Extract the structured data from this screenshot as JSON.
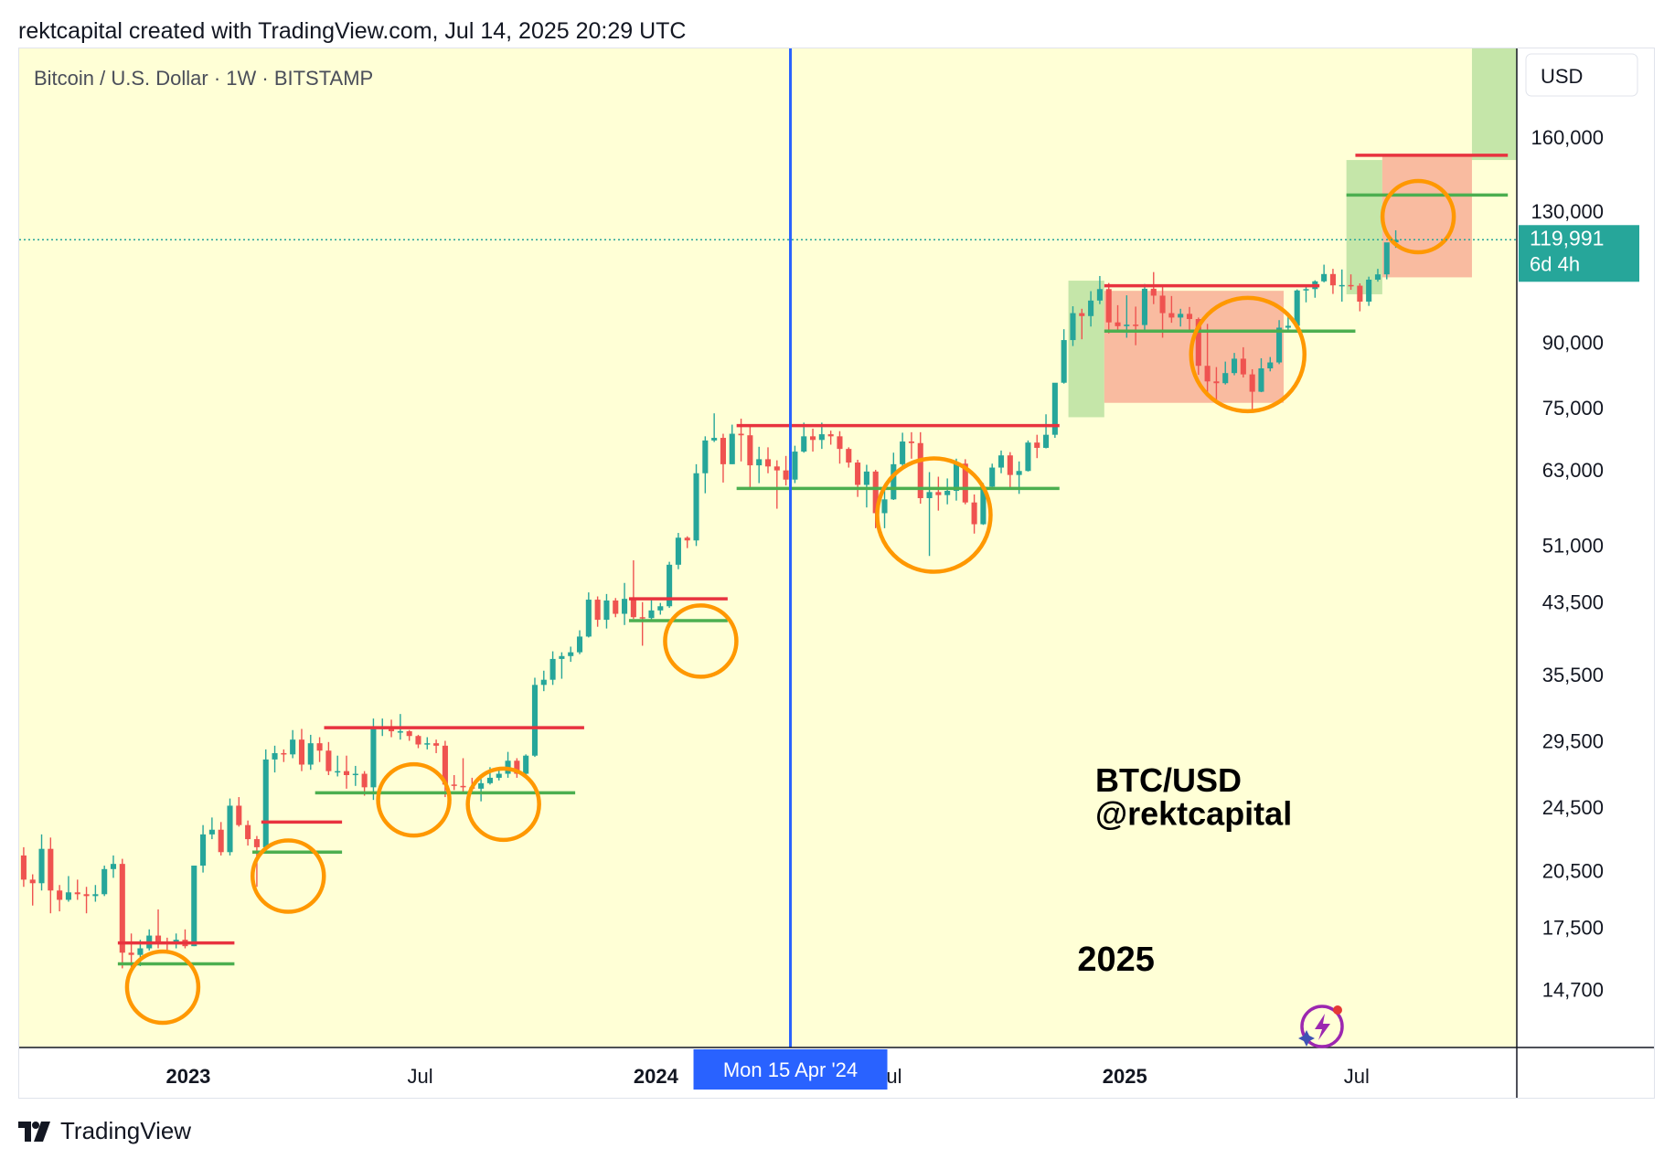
{
  "header": {
    "credit": "rektcapital created with TradingView.com, Jul 14, 2025 20:29 UTC"
  },
  "footer": {
    "brand": "TradingView"
  },
  "colors": {
    "background": "#FFFFD6",
    "up": "#26A69A",
    "down": "#EF5350",
    "resistance": "#E8333F",
    "support": "#4CAF50",
    "circle": "#FF9800",
    "cursor": "#2962FF",
    "price_tag": "#26A69A",
    "green_zone": "#9ED68A",
    "red_zone": "#F7A48D"
  },
  "chart_data": {
    "type": "candlestick",
    "symbol_line": "Bitcoin / U.S. Dollar · 1W · BITSTAMP",
    "currency_button": "USD",
    "scale": "log",
    "y_ticks": [
      160000,
      130000,
      90000,
      75000,
      63000,
      51000,
      43500,
      35500,
      29500,
      24500,
      20500,
      17500,
      14700
    ],
    "y_tick_labels": [
      "160,000",
      "130,000",
      "90,000",
      "75,000",
      "63,000",
      "51,000",
      "43,500",
      "35,500",
      "29,500",
      "24,500",
      "20,500",
      "17,500",
      "14,700"
    ],
    "ylim": [
      12500,
      205000
    ],
    "x_ticks": [
      {
        "label": "2023",
        "date": "2023-01-01",
        "bold": true
      },
      {
        "label": "Jul",
        "date": "2023-07-01",
        "bold": false
      },
      {
        "label": "2024",
        "date": "2024-01-01",
        "bold": true
      },
      {
        "label": "Jul",
        "date": "2024-07-01",
        "bold": false
      },
      {
        "label": "2025",
        "date": "2025-01-01",
        "bold": true
      },
      {
        "label": "Jul",
        "date": "2025-07-01",
        "bold": false
      }
    ],
    "xlim": [
      "2022-08-22",
      "2025-11-03"
    ],
    "last_price": {
      "value": 119991,
      "label": "119,991",
      "countdown": "6d 4h"
    },
    "crosshair": {
      "date": "2024-04-15",
      "label": "Mon 15 Apr '24"
    },
    "annotations": [
      {
        "text": "BTC/USD",
        "date": "2024-12-09",
        "price": 25600
      },
      {
        "text": "@rektcapital",
        "date": "2024-12-09",
        "price": 23300
      },
      {
        "text": "2025",
        "date": "2024-11-25",
        "price": 15500
      }
    ],
    "resistance_lines": [
      {
        "from": "2022-11-07",
        "to": "2023-02-06",
        "price": 16750
      },
      {
        "from": "2023-02-27",
        "to": "2023-05-01",
        "price": 23500
      },
      {
        "from": "2023-04-17",
        "to": "2023-11-06",
        "price": 30600
      },
      {
        "from": "2023-12-11",
        "to": "2024-02-26",
        "price": 43900
      },
      {
        "from": "2024-03-04",
        "to": "2024-11-11",
        "price": 71300
      },
      {
        "from": "2024-12-16",
        "to": "2025-06-02",
        "price": 105500
      },
      {
        "from": "2025-06-30",
        "to": "2025-10-27",
        "price": 152000
      }
    ],
    "support_lines": [
      {
        "from": "2022-11-07",
        "to": "2023-02-06",
        "price": 15800
      },
      {
        "from": "2023-02-20",
        "to": "2023-05-01",
        "price": 21600
      },
      {
        "from": "2023-04-10",
        "to": "2023-10-30",
        "price": 25500
      },
      {
        "from": "2023-12-11",
        "to": "2024-02-26",
        "price": 41300
      },
      {
        "from": "2024-03-04",
        "to": "2024-11-11",
        "price": 59800
      },
      {
        "from": "2024-12-16",
        "to": "2025-06-30",
        "price": 92900
      },
      {
        "from": "2025-06-23",
        "to": "2025-10-27",
        "price": 136000
      }
    ],
    "circles": [
      {
        "date": "2022-12-12",
        "price": 14800
      },
      {
        "date": "2023-03-20",
        "price": 20200
      },
      {
        "date": "2023-06-26",
        "price": 25000
      },
      {
        "date": "2023-09-04",
        "price": 24700
      },
      {
        "date": "2024-02-05",
        "price": 39000
      },
      {
        "date": "2024-08-05",
        "price": 55500
      },
      {
        "date": "2025-04-07",
        "price": 87000
      },
      {
        "date": "2025-08-18",
        "price": 128000
      }
    ],
    "zones": [
      {
        "kind": "green",
        "from": "2024-11-18",
        "to": "2024-12-16",
        "low": 73000,
        "high": 107000
      },
      {
        "kind": "red",
        "from": "2024-12-16",
        "to": "2025-05-05",
        "low": 76000,
        "high": 104000
      },
      {
        "kind": "green",
        "from": "2025-06-23",
        "to": "2025-07-21",
        "low": 103000,
        "high": 150000
      },
      {
        "kind": "red",
        "from": "2025-07-21",
        "to": "2025-09-29",
        "low": 108000,
        "high": 152000
      },
      {
        "kind": "green",
        "from": "2025-09-29",
        "to": "2025-11-03",
        "low": 150000,
        "high": 205000
      }
    ],
    "candles": {
      "start": "2022-08-22",
      "interval_days": 7,
      "fields": [
        "open",
        "high",
        "low",
        "close"
      ],
      "values": [
        [
          21400,
          21900,
          19600,
          20000
        ],
        [
          20000,
          20300,
          18600,
          19800
        ],
        [
          19800,
          22700,
          19400,
          21800
        ],
        [
          21800,
          22500,
          18200,
          19400
        ],
        [
          19400,
          19700,
          18300,
          18900
        ],
        [
          18900,
          20200,
          18800,
          19300
        ],
        [
          19300,
          20000,
          18900,
          19200
        ],
        [
          19200,
          19600,
          18200,
          19100
        ],
        [
          19100,
          19700,
          18800,
          19200
        ],
        [
          19200,
          20800,
          19100,
          20600
        ],
        [
          20600,
          21400,
          20100,
          20900
        ],
        [
          20900,
          21200,
          15600,
          16300
        ],
        [
          16300,
          17200,
          15500,
          16200
        ],
        [
          16200,
          16900,
          15700,
          16500
        ],
        [
          16500,
          17400,
          16400,
          17100
        ],
        [
          17100,
          18400,
          16500,
          16800
        ],
        [
          16800,
          17000,
          16300,
          16700
        ],
        [
          16700,
          17200,
          16500,
          16900
        ],
        [
          16900,
          17400,
          16500,
          16600
        ],
        [
          16600,
          20800,
          16600,
          20800
        ],
        [
          20800,
          23300,
          20400,
          22700
        ],
        [
          22700,
          23800,
          22400,
          23000
        ],
        [
          23000,
          23500,
          21400,
          21600
        ],
        [
          21600,
          25100,
          21400,
          24600
        ],
        [
          24600,
          25200,
          23200,
          23300
        ],
        [
          23300,
          23600,
          22000,
          22400
        ],
        [
          22400,
          22600,
          19600,
          21900
        ],
        [
          21900,
          28800,
          21800,
          28000
        ],
        [
          28000,
          29100,
          27000,
          28500
        ],
        [
          28500,
          28800,
          27800,
          28400
        ],
        [
          28400,
          30400,
          28100,
          29600
        ],
        [
          29600,
          30500,
          27100,
          27600
        ],
        [
          27600,
          30000,
          27200,
          29300
        ],
        [
          29300,
          29800,
          27800,
          28700
        ],
        [
          28700,
          29400,
          26800,
          27100
        ],
        [
          27100,
          28300,
          26700,
          27100
        ],
        [
          27100,
          28300,
          25800,
          26800
        ],
        [
          26800,
          27500,
          26000,
          26900
        ],
        [
          26900,
          27100,
          25300,
          25900
        ],
        [
          25900,
          31400,
          25000,
          30500
        ],
        [
          30500,
          31400,
          29900,
          30600
        ],
        [
          30600,
          31300,
          29800,
          30300
        ],
        [
          30300,
          31800,
          29600,
          30300
        ],
        [
          30300,
          30400,
          29500,
          29900
        ],
        [
          29900,
          30000,
          28900,
          29200
        ],
        [
          29200,
          29800,
          28800,
          29300
        ],
        [
          29300,
          29600,
          28500,
          29100
        ],
        [
          29100,
          29500,
          25200,
          26100
        ],
        [
          26100,
          26800,
          25700,
          26000
        ],
        [
          26000,
          28100,
          25400,
          25900
        ],
        [
          25900,
          26600,
          25500,
          25800
        ],
        [
          25800,
          26500,
          24900,
          26200
        ],
        [
          26200,
          27400,
          26100,
          26600
        ],
        [
          26600,
          27200,
          26400,
          26900
        ],
        [
          26900,
          28600,
          26600,
          27900
        ],
        [
          27900,
          28100,
          26600,
          26900
        ],
        [
          26900,
          28400,
          26800,
          28300
        ],
        [
          28300,
          35200,
          28200,
          34500
        ],
        [
          34500,
          35900,
          33900,
          35000
        ],
        [
          35000,
          37900,
          34500,
          37100
        ],
        [
          37100,
          37800,
          35100,
          37400
        ],
        [
          37400,
          38400,
          36800,
          37800
        ],
        [
          37800,
          40200,
          37600,
          39500
        ],
        [
          39500,
          44700,
          39400,
          43800
        ],
        [
          43800,
          44200,
          40600,
          41400
        ],
        [
          41400,
          44500,
          40400,
          43700
        ],
        [
          43700,
          44000,
          41700,
          42100
        ],
        [
          42100,
          45900,
          40800,
          43900
        ],
        [
          43900,
          48900,
          41500,
          41700
        ],
        [
          41700,
          43500,
          38500,
          41600
        ],
        [
          41600,
          43800,
          41400,
          42500
        ],
        [
          42500,
          43400,
          42000,
          43000
        ],
        [
          43000,
          48700,
          42800,
          48300
        ],
        [
          48300,
          52800,
          47700,
          52100
        ],
        [
          52100,
          52300,
          50600,
          51700
        ],
        [
          51700,
          64000,
          50900,
          62400
        ],
        [
          62400,
          69200,
          59000,
          68400
        ],
        [
          68400,
          73800,
          68100,
          68900
        ],
        [
          68900,
          69700,
          60800,
          64000
        ],
        [
          64000,
          71500,
          64000,
          69700
        ],
        [
          69700,
          72700,
          64500,
          69400
        ],
        [
          69400,
          71200,
          59600,
          63800
        ],
        [
          63800,
          67200,
          60700,
          64900
        ],
        [
          64900,
          67100,
          62400,
          63600
        ],
        [
          63600,
          64700,
          56500,
          62900
        ],
        [
          62900,
          65500,
          60300,
          61300
        ],
        [
          61300,
          67400,
          60700,
          66300
        ],
        [
          66300,
          71900,
          66100,
          69200
        ],
        [
          69200,
          70700,
          66300,
          68500
        ],
        [
          68500,
          71900,
          66800,
          69600
        ],
        [
          69600,
          70300,
          67600,
          69200
        ],
        [
          69200,
          70200,
          64100,
          66800
        ],
        [
          66800,
          67100,
          63400,
          64300
        ],
        [
          64300,
          64800,
          58400,
          60400
        ],
        [
          60400,
          63900,
          56700,
          62700
        ],
        [
          62700,
          63000,
          53500,
          55800
        ],
        [
          55800,
          60400,
          53500,
          58000
        ],
        [
          58000,
          66100,
          57900,
          64000
        ],
        [
          64000,
          69900,
          63600,
          68200
        ],
        [
          68200,
          70000,
          65000,
          67900
        ],
        [
          67900,
          70000,
          57300,
          58200
        ],
        [
          58200,
          62600,
          49500,
          59200
        ],
        [
          59200,
          61800,
          56200,
          58700
        ],
        [
          58700,
          61500,
          57200,
          59400
        ],
        [
          59400,
          65000,
          57800,
          64100
        ],
        [
          64100,
          64900,
          57200,
          57500
        ],
        [
          57500,
          58800,
          52700,
          54100
        ],
        [
          54100,
          60700,
          54000,
          60100
        ],
        [
          60100,
          64100,
          59800,
          63400
        ],
        [
          63400,
          66500,
          62400,
          65600
        ],
        [
          65600,
          66200,
          60000,
          62100
        ],
        [
          62100,
          64500,
          58900,
          62800
        ],
        [
          62800,
          68400,
          62700,
          68000
        ],
        [
          68000,
          69500,
          65100,
          67000
        ],
        [
          67000,
          73600,
          66900,
          69500
        ],
        [
          69500,
          80200,
          68900,
          80400
        ],
        [
          80400,
          93400,
          80200,
          90600
        ],
        [
          90600,
          99600,
          89100,
          97700
        ],
        [
          97700,
          98900,
          90800,
          96900
        ],
        [
          96900,
          103900,
          94100,
          101200
        ],
        [
          101200,
          108400,
          100200,
          104500
        ],
        [
          104500,
          106300,
          92300,
          95200
        ],
        [
          95200,
          99900,
          93100,
          94200
        ],
        [
          94200,
          102700,
          91200,
          94600
        ],
        [
          94600,
          99500,
          89300,
          94500
        ],
        [
          94500,
          106000,
          92500,
          104600
        ],
        [
          104600,
          109600,
          100200,
          102600
        ],
        [
          102600,
          105600,
          91200,
          97700
        ],
        [
          97700,
          102500,
          95100,
          96500
        ],
        [
          96500,
          98900,
          94100,
          97500
        ],
        [
          97500,
          99400,
          93300,
          96100
        ],
        [
          96100,
          96500,
          82200,
          84300
        ],
        [
          84300,
          94800,
          78200,
          80700
        ],
        [
          80700,
          84000,
          76600,
          80300
        ],
        [
          80300,
          85300,
          80000,
          82600
        ],
        [
          82600,
          87400,
          82100,
          86000
        ],
        [
          86000,
          88800,
          81600,
          82300
        ],
        [
          82300,
          83500,
          74500,
          78400
        ],
        [
          78400,
          86100,
          78300,
          83700
        ],
        [
          83700,
          86400,
          83000,
          85100
        ],
        [
          85100,
          95800,
          84700,
          93800
        ],
        [
          93800,
          97900,
          92900,
          94300
        ],
        [
          94300,
          104400,
          93400,
          104100
        ],
        [
          104100,
          105800,
          100700,
          104500
        ],
        [
          104500,
          107100,
          102000,
          106800
        ],
        [
          106800,
          111900,
          106500,
          109000
        ],
        [
          109000,
          110600,
          103100,
          105600
        ],
        [
          105600,
          110400,
          100900,
          105700
        ],
        [
          105700,
          108900,
          104300,
          105500
        ],
        [
          105500,
          106200,
          98200,
          100900
        ],
        [
          100900,
          108200,
          99700,
          107300
        ],
        [
          107300,
          110600,
          106700,
          108900
        ],
        [
          108900,
          119000,
          107400,
          119100
        ],
        [
          119100,
          123200,
          117300,
          119991
        ]
      ]
    }
  }
}
